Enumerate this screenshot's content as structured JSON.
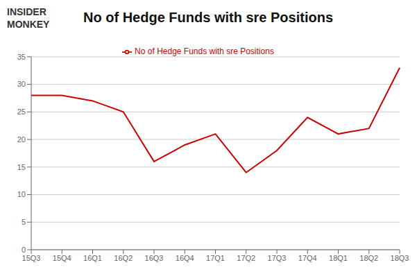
{
  "chart_data": {
    "type": "line",
    "title": "No of Hedge Funds with sre Positions",
    "annotations": [
      "INSIDER",
      "MONKEY"
    ],
    "categories": [
      "15Q3",
      "15Q4",
      "16Q1",
      "16Q2",
      "16Q3",
      "16Q4",
      "17Q1",
      "17Q2",
      "17Q3",
      "17Q4",
      "18Q1",
      "18Q2",
      "18Q3"
    ],
    "series": [
      {
        "name": "No of Hedge Funds with sre Positions",
        "color": "#cc0000",
        "values": [
          28,
          28,
          27,
          25,
          16,
          19,
          21,
          14,
          18,
          24,
          21,
          22,
          33
        ]
      }
    ],
    "ylim": [
      0,
      35
    ],
    "yticks": [
      0,
      5,
      10,
      15,
      20,
      25,
      30,
      35
    ],
    "grid": true,
    "legend": "top"
  }
}
